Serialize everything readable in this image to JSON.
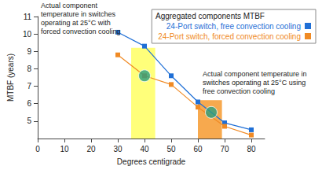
{
  "chart_data": {
    "type": "line",
    "x_label": "Degrees centigrade",
    "y_label": "MTBF (years)",
    "xlim": [
      0,
      85
    ],
    "xticks": [
      0,
      10,
      20,
      30,
      40,
      50,
      60,
      70,
      80
    ],
    "ylim": [
      4,
      11
    ],
    "yticks": [
      5,
      6,
      7,
      8,
      9,
      10,
      11
    ],
    "grid": false,
    "legend": "upper right",
    "legend_title": "Aggregated components MTBF",
    "marker": "square",
    "x": [
      30,
      40,
      50,
      60,
      70,
      80
    ],
    "series": [
      {
        "name": "24-Port switch, free convection cooling",
        "color": "#1f6fd6",
        "values": [
          10.1,
          9.3,
          7.6,
          6.1,
          4.9,
          4.5
        ]
      },
      {
        "name": "24-Port switch, forced convection cooling",
        "color": "#f08a24",
        "values": [
          8.8,
          7.6,
          7.1,
          5.8,
          4.7,
          4.2
        ]
      }
    ],
    "bands": [
      {
        "x": [
          35,
          44
        ],
        "y": [
          4,
          9.2
        ],
        "color": "#ffff7a"
      },
      {
        "x": [
          60,
          69
        ],
        "y": [
          4,
          6.2
        ],
        "color": "#f7a94e"
      }
    ],
    "highlights": {
      "color": "#2a9d7f",
      "points": [
        {
          "x": 40,
          "y": 7.6
        },
        {
          "x": 65,
          "y": 5.5
        }
      ]
    },
    "annotations": [
      {
        "lines": [
          "Actual component",
          "temperature in switches",
          "operating at 25°C with",
          "forced convection cooling"
        ]
      },
      {
        "lines": [
          "Actual component temperature in",
          "switches operating at 25°C using",
          "free convection cooling"
        ]
      }
    ]
  }
}
